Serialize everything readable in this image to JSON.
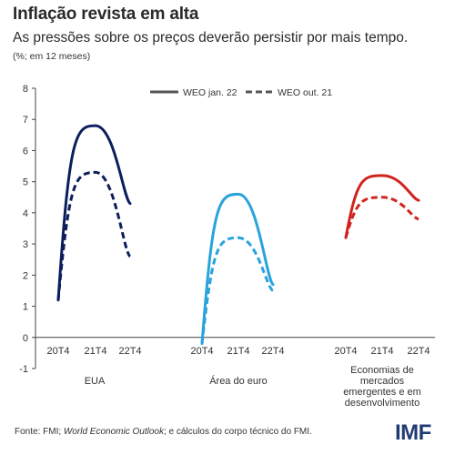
{
  "header": {
    "title": "Inflação revista em alta",
    "subtitle": "As pressões sobre os preços deverão persistir por mais tempo.",
    "unit": "(%; em 12 meses)"
  },
  "legend": {
    "solid_label": "WEO jan. 22",
    "dashed_label": "WEO out. 21"
  },
  "footer": {
    "source_prefix": "Fonte: FMI; ",
    "source_italic": "World Economic Outlook",
    "source_suffix": "; e cálculos do corpo técnico do FMI.",
    "logo": "IMF"
  },
  "chart_data": {
    "type": "line",
    "y_range": [
      -1,
      8
    ],
    "y_ticks": [
      -1,
      0,
      1,
      2,
      3,
      4,
      5,
      6,
      7,
      8
    ],
    "x_categories": [
      "20T4",
      "21T4",
      "22T4"
    ],
    "series_names": [
      "WEO jan. 22",
      "WEO out. 21"
    ],
    "legend_position": "top-right",
    "grid": false,
    "groups": [
      {
        "name": "EUA",
        "color": "#0c1f5c",
        "solid": [
          1.2,
          6.8,
          4.3
        ],
        "dashed": [
          1.2,
          5.3,
          2.6
        ]
      },
      {
        "name": "Área do euro",
        "color": "#29a3dc",
        "solid": [
          -0.2,
          4.6,
          1.7
        ],
        "dashed": [
          -0.2,
          3.2,
          1.5
        ]
      },
      {
        "name": "Economias de mercados emergentes e em desenvolvimento",
        "color": "#d0231e",
        "solid": [
          3.2,
          5.2,
          4.4
        ],
        "dashed": [
          3.2,
          4.5,
          3.8
        ]
      }
    ]
  }
}
